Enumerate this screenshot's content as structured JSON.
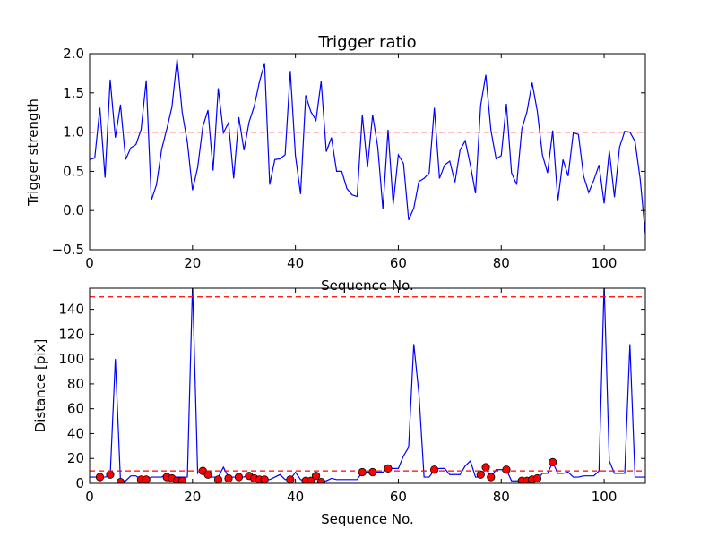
{
  "chart_data": [
    {
      "type": "line",
      "title": "Trigger ratio",
      "xlabel": "Sequence No.",
      "ylabel": "Trigger strength",
      "xlim": [
        0,
        108
      ],
      "ylim": [
        -0.5,
        2.0
      ],
      "xticks": [
        0,
        20,
        40,
        60,
        80,
        100
      ],
      "xtick_labels": [
        "0",
        "20",
        "40",
        "60",
        "80",
        "100"
      ],
      "yticks": [
        -0.5,
        0.0,
        0.5,
        1.0,
        1.5,
        2.0
      ],
      "ytick_labels": [
        "−0.5",
        "0.0",
        "0.5",
        "1.0",
        "1.5",
        "2.0"
      ],
      "series": [
        {
          "name": "trigger strength",
          "color": "#0000ff",
          "style": "solid",
          "x": [
            0,
            1,
            2,
            3,
            4,
            5,
            6,
            7,
            8,
            9,
            10,
            11,
            12,
            13,
            14,
            15,
            16,
            17,
            18,
            19,
            20,
            21,
            22,
            23,
            24,
            25,
            26,
            27,
            28,
            29,
            30,
            31,
            32,
            33,
            34,
            35,
            36,
            37,
            38,
            39,
            40,
            41,
            42,
            43,
            44,
            45,
            46,
            47,
            48,
            49,
            50,
            51,
            52,
            53,
            54,
            55,
            56,
            57,
            58,
            59,
            60,
            61,
            62,
            63,
            64,
            65,
            66,
            67,
            68,
            69,
            70,
            71,
            72,
            73,
            74,
            75,
            76,
            77,
            78,
            79,
            80,
            81,
            82,
            83,
            84,
            85,
            86,
            87,
            88,
            89,
            90,
            91,
            92,
            93,
            94,
            95,
            96,
            97,
            98,
            99,
            100,
            101,
            102,
            103,
            104,
            105,
            106,
            107,
            108
          ],
          "y": [
            0.65,
            0.67,
            1.31,
            0.42,
            1.67,
            0.93,
            1.35,
            0.65,
            0.8,
            0.84,
            1.03,
            1.66,
            0.13,
            0.33,
            0.78,
            1.04,
            1.32,
            1.93,
            1.25,
            0.87,
            0.26,
            0.55,
            1.07,
            1.28,
            0.51,
            1.56,
            0.99,
            1.12,
            0.41,
            1.19,
            0.77,
            1.13,
            1.33,
            1.64,
            1.88,
            0.33,
            0.65,
            0.66,
            0.71,
            1.78,
            0.7,
            0.21,
            1.47,
            1.26,
            1.15,
            1.65,
            0.75,
            0.93,
            0.5,
            0.5,
            0.28,
            0.2,
            0.18,
            1.22,
            0.55,
            1.22,
            0.81,
            0.02,
            1.03,
            0.08,
            0.71,
            0.6,
            -0.12,
            0.03,
            0.37,
            0.41,
            0.48,
            1.31,
            0.41,
            0.58,
            0.63,
            0.36,
            0.77,
            0.89,
            0.58,
            0.22,
            1.34,
            1.73,
            1.02,
            0.66,
            0.7,
            1.36,
            0.48,
            0.33,
            1.04,
            1.26,
            1.63,
            1.27,
            0.71,
            0.48,
            1.02,
            0.12,
            0.65,
            0.44,
            0.99,
            0.97,
            0.44,
            0.23,
            0.39,
            0.58,
            0.09,
            0.76,
            0.17,
            0.81,
            1.01,
            1.0,
            0.88,
            0.4,
            -0.3
          ]
        },
        {
          "name": "threshold",
          "color": "#ff0000",
          "style": "dashed",
          "y_constant": 1.0
        }
      ]
    },
    {
      "type": "line",
      "title": "",
      "xlabel": "Sequence No.",
      "ylabel": "Distance [pix]",
      "xlim": [
        0,
        108
      ],
      "ylim": [
        0,
        157
      ],
      "xticks": [
        0,
        20,
        40,
        60,
        80,
        100
      ],
      "xtick_labels": [
        "0",
        "20",
        "40",
        "60",
        "80",
        "100"
      ],
      "yticks": [
        0,
        20,
        40,
        60,
        80,
        100,
        120,
        140
      ],
      "ytick_labels": [
        "0",
        "20",
        "40",
        "60",
        "80",
        "100",
        "120",
        "140"
      ],
      "series": [
        {
          "name": "distance",
          "color": "#0000ff",
          "style": "solid",
          "x": [
            0,
            1,
            2,
            3,
            4,
            5,
            6,
            7,
            8,
            9,
            10,
            11,
            12,
            13,
            14,
            15,
            16,
            17,
            18,
            19,
            20,
            21,
            22,
            23,
            24,
            25,
            26,
            27,
            28,
            29,
            30,
            31,
            32,
            33,
            34,
            35,
            36,
            37,
            38,
            39,
            40,
            41,
            42,
            43,
            44,
            45,
            46,
            47,
            48,
            49,
            50,
            51,
            52,
            53,
            54,
            55,
            56,
            57,
            58,
            59,
            60,
            61,
            62,
            63,
            64,
            65,
            66,
            67,
            68,
            69,
            70,
            71,
            72,
            73,
            74,
            75,
            76,
            77,
            78,
            79,
            80,
            81,
            82,
            83,
            84,
            85,
            86,
            87,
            88,
            89,
            90,
            91,
            92,
            93,
            94,
            95,
            96,
            97,
            98,
            99,
            100,
            101,
            102,
            103,
            104,
            105,
            106,
            107,
            108
          ],
          "y": [
            5,
            5,
            5,
            5,
            6,
            100,
            2,
            2,
            6,
            6,
            3,
            3,
            5,
            5,
            5,
            8,
            5,
            5,
            5,
            5,
            160,
            8,
            10,
            5,
            5,
            5,
            13,
            5,
            5,
            5,
            5,
            7,
            5,
            3,
            3,
            3,
            5,
            7,
            3,
            3,
            9,
            3,
            2,
            2,
            5,
            2,
            2,
            4,
            3,
            3,
            3,
            3,
            3,
            9,
            9,
            9,
            9,
            9,
            12,
            12,
            12,
            22,
            29,
            112,
            72,
            5,
            5,
            11,
            12,
            12,
            7,
            7,
            7,
            14,
            18,
            5,
            5,
            12,
            5,
            11,
            11,
            11,
            2,
            2,
            2,
            2,
            3,
            3,
            8,
            8,
            17,
            8,
            8,
            9,
            5,
            5,
            6,
            6,
            6,
            10,
            160,
            18,
            8,
            8,
            8,
            112,
            5,
            5,
            5
          ]
        },
        {
          "name": "markers",
          "color": "#ff0000",
          "style": "markers",
          "x": [
            2,
            4,
            6,
            10,
            11,
            15,
            16,
            17,
            18,
            22,
            23,
            25,
            27,
            29,
            31,
            32,
            33,
            34,
            39,
            42,
            43,
            44,
            45,
            53,
            55,
            58,
            67,
            76,
            77,
            78,
            81,
            84,
            85,
            86,
            87,
            90
          ],
          "y": [
            5,
            7,
            1,
            3,
            3,
            5,
            4,
            2,
            2,
            10,
            7,
            3,
            4,
            5,
            6,
            4,
            3,
            3,
            3,
            2,
            2,
            6,
            1,
            9,
            9,
            12,
            11,
            7,
            13,
            5,
            11,
            2,
            2,
            3,
            4,
            17
          ]
        },
        {
          "name": "lower threshold",
          "color": "#ff0000",
          "style": "dashed",
          "y_constant": 10
        },
        {
          "name": "upper threshold",
          "color": "#ff0000",
          "style": "dashed",
          "y_constant": 150
        }
      ]
    }
  ]
}
